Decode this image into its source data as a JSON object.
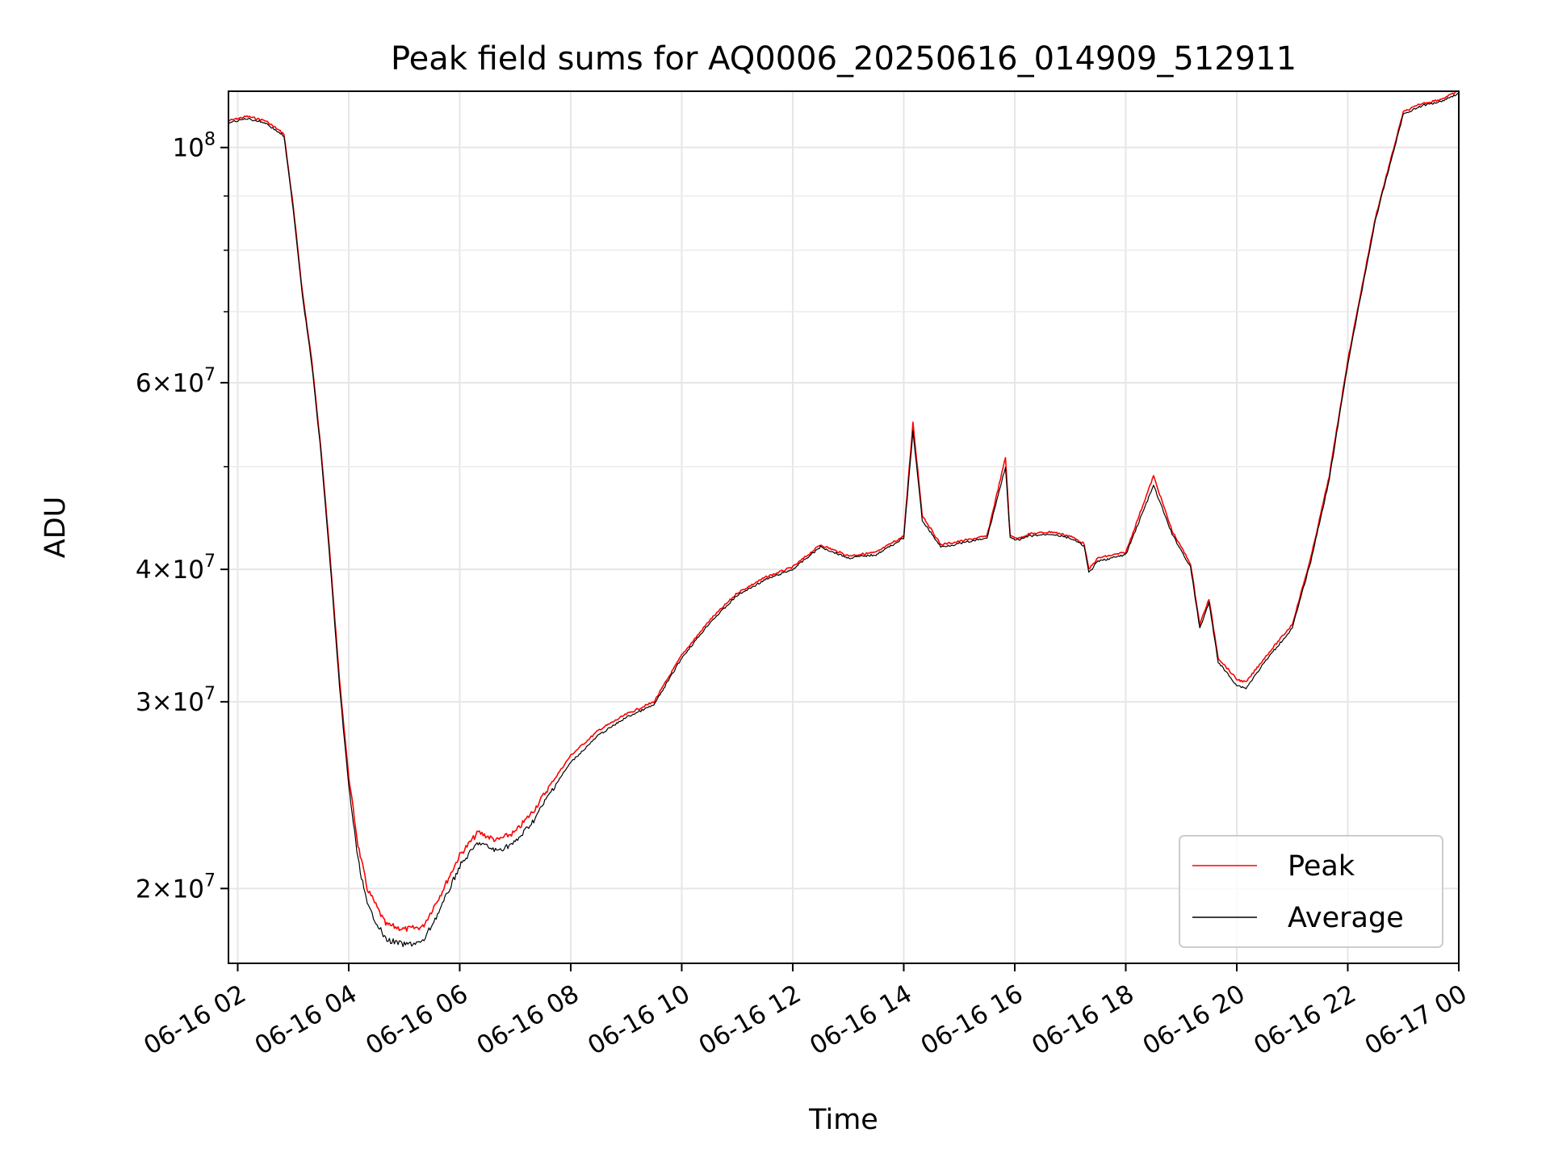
{
  "chart_data": {
    "type": "line",
    "title": "Peak field sums for AQ0006_20250616_014909_512911",
    "xlabel": "Time",
    "ylabel": "ADU",
    "y_scale": "log",
    "ylim": [
      17000000,
      113000000
    ],
    "xlim": [
      "06-16 01:50",
      "06-17 00:00"
    ],
    "grid": true,
    "legend_position": "lower-right",
    "x_ticks": [
      {
        "at": "06-16 02:00",
        "label": "06-16 02"
      },
      {
        "at": "06-16 04:00",
        "label": "06-16 04"
      },
      {
        "at": "06-16 06:00",
        "label": "06-16 06"
      },
      {
        "at": "06-16 08:00",
        "label": "06-16 08"
      },
      {
        "at": "06-16 10:00",
        "label": "06-16 10"
      },
      {
        "at": "06-16 12:00",
        "label": "06-16 12"
      },
      {
        "at": "06-16 14:00",
        "label": "06-16 14"
      },
      {
        "at": "06-16 16:00",
        "label": "06-16 16"
      },
      {
        "at": "06-16 18:00",
        "label": "06-16 18"
      },
      {
        "at": "06-16 20:00",
        "label": "06-16 20"
      },
      {
        "at": "06-16 22:00",
        "label": "06-16 22"
      },
      {
        "at": "06-17 00:00",
        "label": "06-17 00"
      }
    ],
    "y_ticks": [
      {
        "value": 20000000,
        "mantissa": "2",
        "exponent": "7"
      },
      {
        "value": 30000000,
        "mantissa": "3",
        "exponent": "7"
      },
      {
        "value": 40000000,
        "mantissa": "4",
        "exponent": "7"
      },
      {
        "value": 60000000,
        "mantissa": "6",
        "exponent": "7"
      },
      {
        "value": 100000000,
        "mantissa": "",
        "exponent": "8"
      }
    ],
    "y_minor_ticks": [
      50000000,
      70000000,
      80000000,
      90000000
    ],
    "series": [
      {
        "name": "Peak",
        "color": "#ff0000",
        "x": [
          "06-16 01:50",
          "06-16 02:10",
          "06-16 02:30",
          "06-16 02:50",
          "06-16 03:00",
          "06-16 03:10",
          "06-16 03:20",
          "06-16 03:30",
          "06-16 03:40",
          "06-16 03:50",
          "06-16 04:00",
          "06-16 04:10",
          "06-16 04:20",
          "06-16 04:40",
          "06-16 05:00",
          "06-16 05:20",
          "06-16 05:40",
          "06-16 06:00",
          "06-16 06:20",
          "06-16 06:40",
          "06-16 07:00",
          "06-16 07:20",
          "06-16 07:40",
          "06-16 08:00",
          "06-16 08:30",
          "06-16 09:00",
          "06-16 09:30",
          "06-16 10:00",
          "06-16 10:30",
          "06-16 11:00",
          "06-16 11:30",
          "06-16 12:00",
          "06-16 12:30",
          "06-16 13:00",
          "06-16 13:30",
          "06-16 14:00",
          "06-16 14:10",
          "06-16 14:20",
          "06-16 14:40",
          "06-16 15:00",
          "06-16 15:30",
          "06-16 15:50",
          "06-16 15:55",
          "06-16 16:05",
          "06-16 16:15",
          "06-16 16:40",
          "06-16 17:00",
          "06-16 17:15",
          "06-16 17:20",
          "06-16 17:30",
          "06-16 18:00",
          "06-16 18:30",
          "06-16 18:50",
          "06-16 19:10",
          "06-16 19:20",
          "06-16 19:30",
          "06-16 19:40",
          "06-16 20:00",
          "06-16 20:10",
          "06-16 20:30",
          "06-16 21:00",
          "06-16 21:20",
          "06-16 21:40",
          "06-16 22:00",
          "06-16 22:30",
          "06-16 23:00",
          "06-16 23:20",
          "06-16 23:40",
          "06-17 00:00"
        ],
        "values": [
          106000000,
          107000000,
          106000000,
          103000000,
          88000000,
          73000000,
          63000000,
          52000000,
          41000000,
          31500000,
          25500000,
          22000000,
          20000000,
          18500000,
          18300000,
          18400000,
          19800000,
          21500000,
          22600000,
          22200000,
          22600000,
          23700000,
          25200000,
          26700000,
          28200000,
          29200000,
          30000000,
          33200000,
          35800000,
          38000000,
          39300000,
          40200000,
          42200000,
          41200000,
          41500000,
          43000000,
          55000000,
          45000000,
          42200000,
          42500000,
          43000000,
          51000000,
          43000000,
          42800000,
          43200000,
          43400000,
          43000000,
          42300000,
          40000000,
          41000000,
          41500000,
          49000000,
          43500000,
          40500000,
          35500000,
          37500000,
          33000000,
          31500000,
          31300000,
          33000000,
          35500000,
          41000000,
          49000000,
          63000000,
          86000000,
          108000000,
          110000000,
          111000000,
          113000000
        ]
      },
      {
        "name": "Average",
        "color": "#000000",
        "x": [
          "06-16 01:50",
          "06-16 02:10",
          "06-16 02:30",
          "06-16 02:50",
          "06-16 03:00",
          "06-16 03:10",
          "06-16 03:20",
          "06-16 03:30",
          "06-16 03:40",
          "06-16 03:50",
          "06-16 04:00",
          "06-16 04:10",
          "06-16 04:20",
          "06-16 04:40",
          "06-16 05:00",
          "06-16 05:20",
          "06-16 05:40",
          "06-16 06:00",
          "06-16 06:20",
          "06-16 06:40",
          "06-16 07:00",
          "06-16 07:20",
          "06-16 07:40",
          "06-16 08:00",
          "06-16 08:30",
          "06-16 09:00",
          "06-16 09:30",
          "06-16 10:00",
          "06-16 10:30",
          "06-16 11:00",
          "06-16 11:30",
          "06-16 12:00",
          "06-16 12:30",
          "06-16 13:00",
          "06-16 13:30",
          "06-16 14:00",
          "06-16 14:10",
          "06-16 14:20",
          "06-16 14:40",
          "06-16 15:00",
          "06-16 15:30",
          "06-16 15:50",
          "06-16 15:55",
          "06-16 16:05",
          "06-16 16:15",
          "06-16 16:40",
          "06-16 17:00",
          "06-16 17:15",
          "06-16 17:20",
          "06-16 17:30",
          "06-16 18:00",
          "06-16 18:30",
          "06-16 18:50",
          "06-16 19:10",
          "06-16 19:20",
          "06-16 19:30",
          "06-16 19:40",
          "06-16 20:00",
          "06-16 20:10",
          "06-16 20:30",
          "06-16 21:00",
          "06-16 21:20",
          "06-16 21:40",
          "06-16 22:00",
          "06-16 22:30",
          "06-16 23:00",
          "06-16 23:20",
          "06-16 23:40",
          "06-17 00:00"
        ],
        "values": [
          105500000,
          106500000,
          105500000,
          102500000,
          87500000,
          72500000,
          62500000,
          51500000,
          40500000,
          31000000,
          25000000,
          21300000,
          19300000,
          17900000,
          17700000,
          17800000,
          19200000,
          21000000,
          22100000,
          21700000,
          22100000,
          23200000,
          24800000,
          26300000,
          27900000,
          29000000,
          29800000,
          33000000,
          35600000,
          37800000,
          39100000,
          40000000,
          42000000,
          41000000,
          41300000,
          42800000,
          54000000,
          44500000,
          42000000,
          42300000,
          42800000,
          50000000,
          42800000,
          42600000,
          43000000,
          43200000,
          42800000,
          42100000,
          39700000,
          40700000,
          41300000,
          48000000,
          43200000,
          40200000,
          35200000,
          37200000,
          32700000,
          31100000,
          30900000,
          32700000,
          35200000,
          40700000,
          48600000,
          62500000,
          85500000,
          107500000,
          109500000,
          110500000,
          112500000
        ]
      }
    ]
  }
}
